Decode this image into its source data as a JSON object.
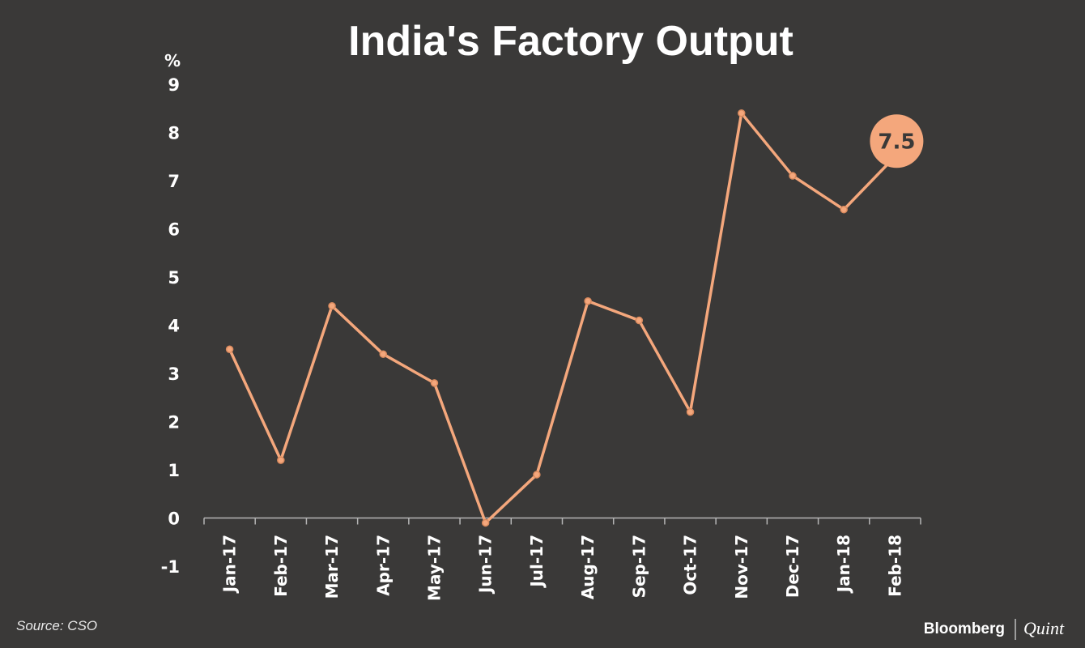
{
  "chart_data": {
    "type": "line",
    "title": "India's Factory Output",
    "ylabel": "%",
    "xlabel": "",
    "ylim": [
      -1,
      9
    ],
    "yticks": [
      9,
      8,
      7,
      6,
      5,
      4,
      3,
      2,
      1,
      0,
      -1
    ],
    "categories": [
      "Jan-17",
      "Feb-17",
      "Mar-17",
      "Apr-17",
      "May-17",
      "Jun-17",
      "Jul-17",
      "Aug-17",
      "Sep-17",
      "Oct-17",
      "Nov-17",
      "Dec-17",
      "Jan-18",
      "Feb-18"
    ],
    "series": [
      {
        "name": "Factory Output",
        "values": [
          3.5,
          1.2,
          4.4,
          3.4,
          2.8,
          -0.1,
          0.9,
          4.5,
          4.1,
          2.2,
          8.4,
          7.1,
          6.4,
          7.5
        ]
      }
    ],
    "annotation": {
      "label": "7.5",
      "category": "Feb-18"
    },
    "colors": {
      "line": "#f4a77c",
      "background": "#3a3938",
      "axis": "#aaaaaa"
    },
    "source": "Source: CSO"
  },
  "branding": {
    "primary": "Bloomberg",
    "secondary": "Quint"
  }
}
